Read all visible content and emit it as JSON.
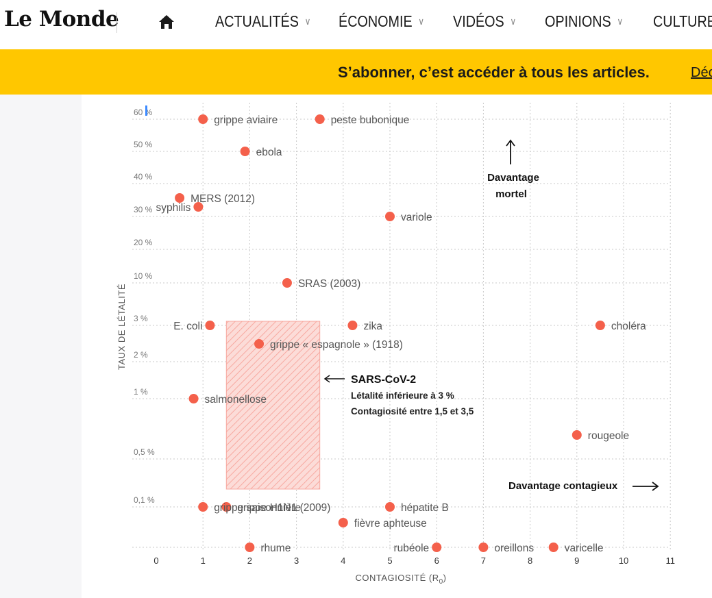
{
  "header": {
    "logo": "Le Monde",
    "nav": [
      {
        "label": "ACTUALITÉS",
        "chevron": true
      },
      {
        "label": "ÉCONOMIE",
        "chevron": true
      },
      {
        "label": "VIDÉOS",
        "chevron": true
      },
      {
        "label": "OPINIONS",
        "chevron": true
      },
      {
        "label": "CULTURE",
        "chevron": false
      }
    ]
  },
  "banner": {
    "text": "S’abonner, c’est accéder à tous les articles.",
    "link": "Déc"
  },
  "colors": {
    "accent": "#ffc700",
    "point": "#f4604b",
    "zone_fill": "#fbd3cf"
  },
  "chart_data": {
    "type": "scatter",
    "xlabel": "CONTAGIOSITÉ (R",
    "xlabel_sub": "0",
    "xlabel_end": ")",
    "ylabel": "TAUX DE LÉTALITÉ",
    "x_ticks": [
      "0",
      "1",
      "2",
      "3",
      "4",
      "5",
      "6",
      "7",
      "8",
      "9",
      "10",
      "11"
    ],
    "xlim": [
      0,
      11
    ],
    "y_ticks": [
      "60 %",
      "50 %",
      "40 %",
      "30 %",
      "20 %",
      "10 %",
      "3 %",
      "2 %",
      "1 %",
      "0,5 %",
      "0,1 %"
    ],
    "y_scale": "non-linear (ranked bands)",
    "points": [
      {
        "name": "grippe aviaire",
        "x": 1,
        "y": "60 %"
      },
      {
        "name": "peste bubonique",
        "x": 3.5,
        "y": "60 %"
      },
      {
        "name": "ebola",
        "x": 1.9,
        "y": "50 %"
      },
      {
        "name": "MERS (2012)",
        "x": 0.5,
        "y": "35 %"
      },
      {
        "name": "syphilis",
        "x": 0.9,
        "y": "33 %"
      },
      {
        "name": "variole",
        "x": 5,
        "y": "30 %"
      },
      {
        "name": "SRAS (2003)",
        "x": 2.8,
        "y": "10 %"
      },
      {
        "name": "E. coli",
        "x": 1.15,
        "y": "3 %"
      },
      {
        "name": "zika",
        "x": 4.2,
        "y": "3 %"
      },
      {
        "name": "choléra",
        "x": 9.5,
        "y": "3 %"
      },
      {
        "name": "grippe « espagnole » (1918)",
        "x": 2.2,
        "y": "2.5 %"
      },
      {
        "name": "salmonellose",
        "x": 0.8,
        "y": "1 %"
      },
      {
        "name": "rougeole",
        "x": 9,
        "y": "0.7 %"
      },
      {
        "name": "grippe H1N1 (2009)",
        "x": 1.5,
        "y": "0.1 %"
      },
      {
        "name": "grippe saisonnière",
        "x": 1,
        "y": "0.1 %"
      },
      {
        "name": "hépatite B",
        "x": 5,
        "y": "0.1 %"
      },
      {
        "name": "fièvre aphteuse",
        "x": 4,
        "y": "0.05 %"
      },
      {
        "name": "rhume",
        "x": 2,
        "y": "0 %"
      },
      {
        "name": "rubéole",
        "x": 6,
        "y": "0 %"
      },
      {
        "name": "oreillons",
        "x": 7,
        "y": "0 %"
      },
      {
        "name": "varicelle",
        "x": 8.5,
        "y": "0 %"
      }
    ],
    "annotations": {
      "more_deadly_1": "Davantage",
      "more_deadly_2": "mortel",
      "more_contagious": "Davantage contagieux",
      "sars_title": "SARS-CoV-2",
      "sars_line1": "Létalité inférieure à 3 %",
      "sars_line2": "Contagiosité entre 1,5 et 3,5"
    }
  }
}
